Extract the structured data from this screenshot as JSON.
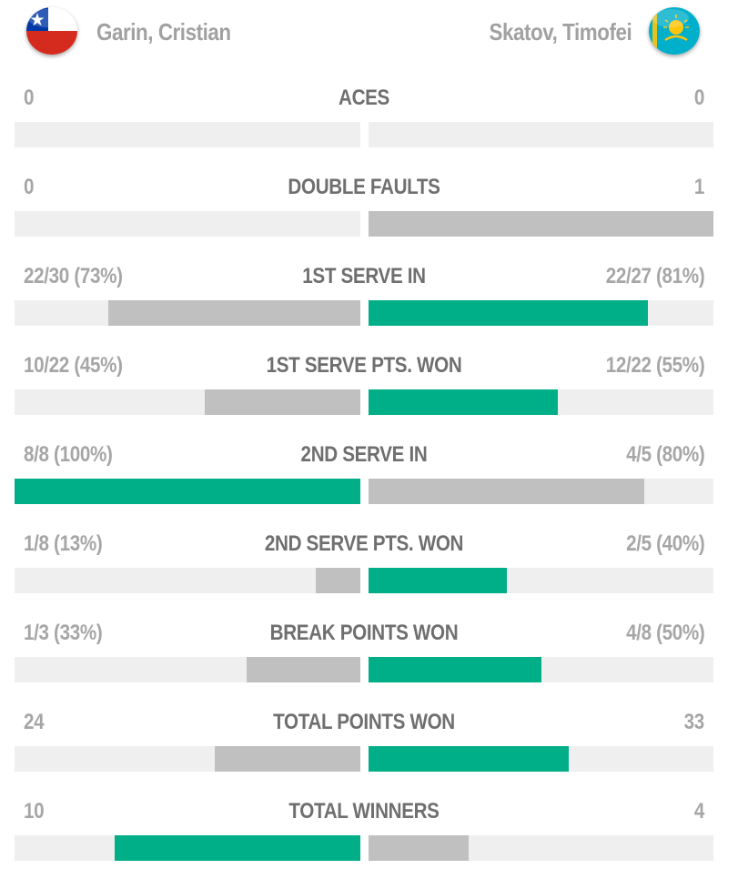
{
  "players": {
    "left": {
      "name": "Garin, Cristian",
      "flag": "chile-flag"
    },
    "right": {
      "name": "Skatov, Timofei",
      "flag": "kazakhstan-flag"
    }
  },
  "colors": {
    "leader_bar": "#00ae87",
    "other_bar": "#c0c0c0",
    "track": "#efefef",
    "label": "#6f6f6f",
    "value": "#a6a6a6"
  },
  "stats": [
    {
      "label": "ACES",
      "left_value": "0",
      "right_value": "0",
      "left_fraction": 0.0,
      "right_fraction": 0.0,
      "leader": "none"
    },
    {
      "label": "DOUBLE FAULTS",
      "left_value": "0",
      "right_value": "1",
      "left_fraction": 0.0,
      "right_fraction": 1.0,
      "leader": "none"
    },
    {
      "label": "1ST SERVE IN",
      "left_value": "22/30 (73%)",
      "right_value": "22/27 (81%)",
      "left_fraction": 0.73,
      "right_fraction": 0.81,
      "leader": "right"
    },
    {
      "label": "1ST SERVE PTS. WON",
      "left_value": "10/22 (45%)",
      "right_value": "12/22 (55%)",
      "left_fraction": 0.45,
      "right_fraction": 0.55,
      "leader": "right"
    },
    {
      "label": "2ND SERVE IN",
      "left_value": "8/8 (100%)",
      "right_value": "4/5 (80%)",
      "left_fraction": 1.0,
      "right_fraction": 0.8,
      "leader": "left"
    },
    {
      "label": "2ND SERVE PTS. WON",
      "left_value": "1/8 (13%)",
      "right_value": "2/5 (40%)",
      "left_fraction": 0.13,
      "right_fraction": 0.4,
      "leader": "right"
    },
    {
      "label": "BREAK POINTS WON",
      "left_value": "1/3 (33%)",
      "right_value": "4/8 (50%)",
      "left_fraction": 0.33,
      "right_fraction": 0.5,
      "leader": "right"
    },
    {
      "label": "TOTAL POINTS WON",
      "left_value": "24",
      "right_value": "33",
      "left_fraction": 0.42,
      "right_fraction": 0.58,
      "leader": "right"
    },
    {
      "label": "TOTAL WINNERS",
      "left_value": "10",
      "right_value": "4",
      "left_fraction": 0.71,
      "right_fraction": 0.29,
      "leader": "left"
    }
  ]
}
